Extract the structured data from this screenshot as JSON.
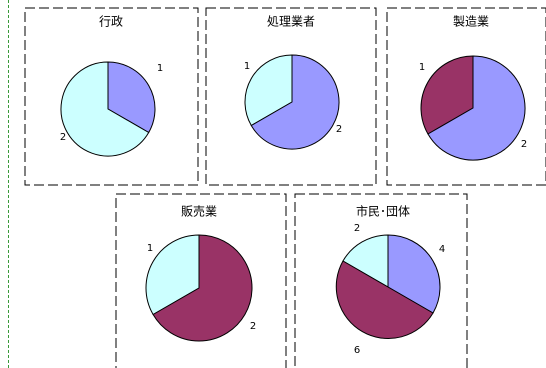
{
  "colors": {
    "c1": "#9999FF",
    "c2": "#CCFFFF",
    "c3": "#993366"
  },
  "chart_data": [
    {
      "type": "pie",
      "title": "行政",
      "slices": [
        {
          "label": "1",
          "value": 1,
          "color": "#9999FF"
        },
        {
          "label": "2",
          "value": 2,
          "color": "#CCFFFF"
        }
      ]
    },
    {
      "type": "pie",
      "title": "処理業者",
      "slices": [
        {
          "label": "1",
          "value": 1,
          "color": "#CCFFFF"
        },
        {
          "label": "2",
          "value": 2,
          "color": "#9999FF"
        }
      ]
    },
    {
      "type": "pie",
      "title": "製造業",
      "slices": [
        {
          "label": "1",
          "value": 1,
          "color": "#993366"
        },
        {
          "label": "2",
          "value": 2,
          "color": "#9999FF"
        }
      ]
    },
    {
      "type": "pie",
      "title": "販売業",
      "slices": [
        {
          "label": "1",
          "value": 1,
          "color": "#CCFFFF"
        },
        {
          "label": "2",
          "value": 2,
          "color": "#993366"
        }
      ]
    },
    {
      "type": "pie",
      "title": "市民･団体",
      "slices": [
        {
          "label": "2",
          "value": 2,
          "color": "#CCFFFF"
        },
        {
          "label": "4",
          "value": 4,
          "color": "#9999FF"
        },
        {
          "label": "6",
          "value": 6,
          "color": "#993366"
        }
      ]
    }
  ]
}
